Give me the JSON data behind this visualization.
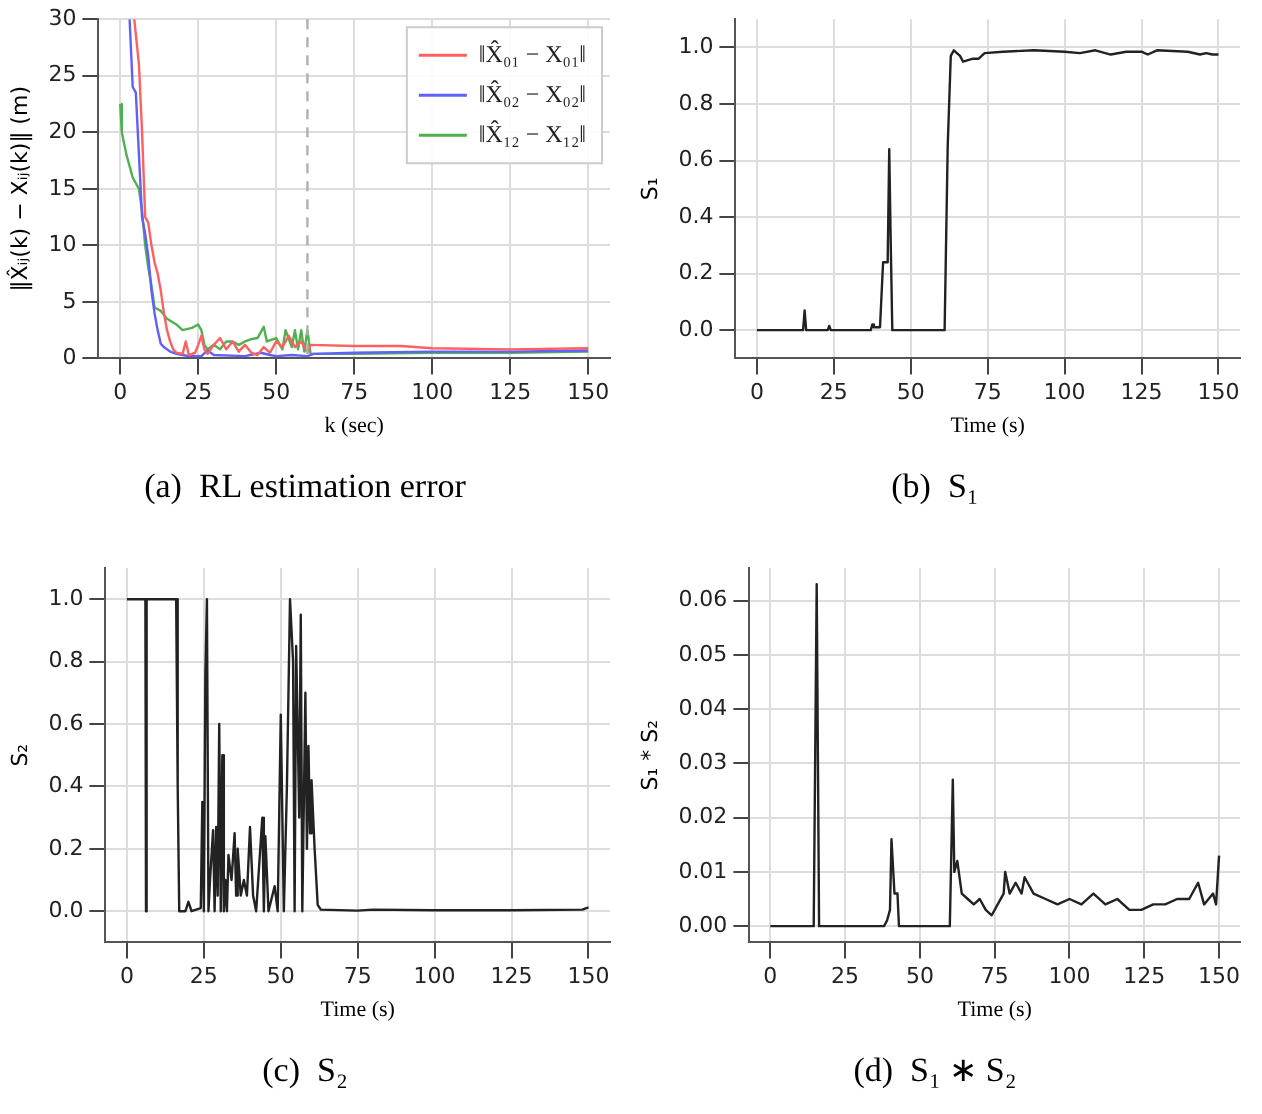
{
  "chart_data": [
    {
      "type": "line",
      "title": "(a)  RL estimation error",
      "xlabel": "k (sec)",
      "ylabel": "‖X̂ᵢⱼ(k) − Xᵢⱼ(k)‖ (m)",
      "xlim": [
        -7,
        157
      ],
      "xticks": [
        0,
        25,
        50,
        75,
        100,
        125,
        150
      ],
      "ylim": [
        0,
        30
      ],
      "yticks": [
        0,
        5,
        10,
        15,
        20,
        25,
        30
      ],
      "grid": true,
      "legend": "top right",
      "ref_lines": [
        {
          "axis": "x",
          "value": 60,
          "color": "#b0b0b0",
          "line_style": "dashed"
        }
      ],
      "series": [
        {
          "name": "‖X̂₀₁ − X₀₁‖",
          "color": "#ff6060",
          "x": [
            4.5,
            6,
            7,
            8,
            9,
            10,
            11,
            12,
            13,
            14,
            15,
            16,
            17,
            18,
            20,
            21,
            22,
            24,
            25,
            26,
            27,
            28,
            30,
            32,
            34,
            36,
            38,
            40,
            42,
            44,
            46,
            48,
            50,
            52,
            54,
            56,
            58,
            60,
            61,
            75,
            90,
            100,
            125,
            150
          ],
          "values": [
            30,
            26,
            20,
            12.5,
            12,
            10,
            8.5,
            7.5,
            6,
            4,
            2.5,
            1.5,
            0.8,
            0.5,
            0.4,
            1.5,
            0.3,
            0.5,
            1.2,
            2,
            0.8,
            0.4,
            1.2,
            1.8,
            0.8,
            1.5,
            0.6,
            1.2,
            0.5,
            0.3,
            1,
            0.5,
            1.5,
            1,
            2,
            1,
            1.5,
            0.5,
            1.2,
            1.1,
            1.1,
            0.9,
            0.8,
            0.9
          ]
        },
        {
          "name": "‖X̂₀₂ − X₀₂‖",
          "color": "#6060ff",
          "x": [
            3,
            4,
            5,
            6,
            7,
            8,
            9,
            10,
            11,
            12,
            13,
            14,
            16,
            18,
            20,
            22,
            26,
            28,
            30,
            40,
            45,
            48,
            50,
            55,
            60,
            62,
            75,
            100,
            125,
            150
          ],
          "values": [
            30,
            24,
            23.5,
            18,
            12.5,
            11,
            9,
            6,
            4,
            2.5,
            1.3,
            1,
            0.6,
            0.4,
            0.3,
            0.2,
            0.2,
            0.7,
            0.3,
            0.2,
            0.5,
            0.3,
            0.2,
            0.3,
            0.2,
            0.4,
            0.5,
            0.6,
            0.6,
            0.7
          ]
        },
        {
          "name": "‖X̂₁₂ − X₁₂‖",
          "color": "#50b050",
          "x": [
            0,
            0.5,
            2,
            4,
            6,
            7,
            8,
            9,
            10,
            11,
            13,
            15,
            18,
            20,
            23,
            25,
            26,
            27,
            28,
            30,
            32,
            34,
            36,
            38,
            40,
            42,
            44,
            46,
            47,
            50,
            52,
            53,
            55,
            56,
            57,
            58,
            59,
            60,
            61,
            75,
            100,
            125,
            150
          ],
          "values": [
            22.5,
            20,
            18,
            16,
            15,
            13,
            10,
            8,
            6.5,
            4.5,
            4.2,
            3.5,
            3,
            2.5,
            2.7,
            3,
            2.5,
            1.2,
            0.8,
            1.2,
            0.8,
            1.5,
            1.5,
            1.2,
            1.5,
            1.7,
            1.8,
            2.8,
            1.5,
            1.8,
            0.8,
            2.5,
            1,
            2.5,
            0.8,
            2.5,
            0.6,
            2.5,
            0.4,
            0.4,
            0.5,
            0.5,
            0.6
          ]
        }
      ]
    },
    {
      "type": "line",
      "title": "(b)  S₁",
      "xlabel": "Time (s)",
      "ylabel": "S₁",
      "xlim": [
        -7,
        157
      ],
      "xticks": [
        0,
        25,
        50,
        75,
        100,
        125,
        150
      ],
      "ylim": [
        -0.1,
        1.1
      ],
      "yticks": [
        {
          "value": 0,
          "label": "0.0"
        },
        {
          "value": 0.2,
          "label": "0.2"
        },
        {
          "value": 0.4,
          "label": "0.4"
        },
        {
          "value": 0.6,
          "label": "0.6"
        },
        {
          "value": 0.8,
          "label": "0.8"
        },
        {
          "value": 1,
          "label": "1.0"
        }
      ],
      "grid": true,
      "series": [
        {
          "color": "#222222",
          "x": [
            0,
            15,
            15.5,
            16,
            23,
            23.5,
            24,
            37,
            37.5,
            38,
            40,
            41,
            42,
            42.5,
            43,
            43.5,
            44,
            61,
            62,
            63,
            64,
            66,
            67,
            70,
            72,
            74,
            80,
            90,
            100,
            105,
            110,
            115,
            120,
            125,
            127,
            130,
            140,
            144,
            146,
            148,
            150
          ],
          "values": [
            0,
            0,
            0.07,
            0,
            0,
            0.015,
            0,
            0,
            0.02,
            0.01,
            0.01,
            0.24,
            0.24,
            0.25,
            0.64,
            0.3,
            0,
            0,
            0.65,
            0.97,
            0.99,
            0.97,
            0.95,
            0.96,
            0.96,
            0.98,
            0.985,
            0.99,
            0.985,
            0.98,
            0.99,
            0.975,
            0.985,
            0.985,
            0.975,
            0.99,
            0.985,
            0.975,
            0.98,
            0.975,
            0.975
          ]
        }
      ]
    },
    {
      "type": "line",
      "title": "(c)  S₂",
      "xlabel": "Time (s)",
      "ylabel": "S₂",
      "xlim": [
        -7,
        157
      ],
      "xticks": [
        0,
        25,
        50,
        75,
        100,
        125,
        150
      ],
      "ylim": [
        -0.1,
        1.1
      ],
      "yticks": [
        {
          "value": 0,
          "label": "0.0"
        },
        {
          "value": 0.2,
          "label": "0.2"
        },
        {
          "value": 0.4,
          "label": "0.4"
        },
        {
          "value": 0.6,
          "label": "0.6"
        },
        {
          "value": 0.8,
          "label": "0.8"
        },
        {
          "value": 1,
          "label": "1.0"
        }
      ],
      "grid": true,
      "series": [
        {
          "color": "#222222",
          "x": [
            0,
            6,
            6.2,
            6.4,
            16,
            16.5,
            17,
            19,
            20,
            21,
            24,
            24.5,
            25,
            25.5,
            26,
            26.5,
            27,
            28,
            28.5,
            29,
            29.5,
            30,
            30.5,
            31,
            31.5,
            32,
            32.5,
            33,
            34,
            35,
            35.5,
            36,
            37,
            38,
            39,
            40,
            41,
            42,
            44,
            44.5,
            45,
            46,
            48,
            49,
            50,
            51,
            52,
            53,
            54,
            54.5,
            55,
            56,
            56.5,
            57,
            58,
            58.5,
            59,
            59.5,
            60,
            61,
            62,
            63,
            75,
            80,
            100,
            125,
            148,
            150
          ],
          "values": [
            1,
            1,
            0,
            1,
            1,
            0.4,
            0,
            0,
            0.03,
            0,
            0.01,
            0.35,
            0,
            0.76,
            1,
            0,
            0.1,
            0.26,
            0,
            0.27,
            0.05,
            0.6,
            0,
            0.5,
            0,
            0.1,
            0,
            0.18,
            0.1,
            0.25,
            0.05,
            0.2,
            0.05,
            0.1,
            0.05,
            0.27,
            0.05,
            0,
            0.3,
            0,
            0.24,
            0,
            0.08,
            0,
            0.63,
            0,
            0.4,
            1,
            0.8,
            0,
            0.85,
            0.3,
            0.95,
            0,
            0.7,
            0.2,
            0.53,
            0.25,
            0.42,
            0.2,
            0.02,
            0.005,
            0.002,
            0.005,
            0.003,
            0.003,
            0.005,
            0.012
          ]
        }
      ]
    },
    {
      "type": "line",
      "title": "(d)  S₁ ∗ S₂",
      "xlabel": "Time (s)",
      "ylabel": "S₁ * S₂",
      "xlim": [
        -7,
        157
      ],
      "xticks": [
        0,
        25,
        50,
        75,
        100,
        125,
        150
      ],
      "ylim": [
        -0.003,
        0.066
      ],
      "yticks": [
        {
          "value": 0,
          "label": "0.00"
        },
        {
          "value": 0.01,
          "label": "0.01"
        },
        {
          "value": 0.02,
          "label": "0.02"
        },
        {
          "value": 0.03,
          "label": "0.03"
        },
        {
          "value": 0.04,
          "label": "0.04"
        },
        {
          "value": 0.05,
          "label": "0.05"
        },
        {
          "value": 0.06,
          "label": "0.06"
        }
      ],
      "grid": true,
      "series": [
        {
          "color": "#222222",
          "x": [
            0,
            14.5,
            15.5,
            16.3,
            25,
            38,
            39,
            40,
            40.5,
            41.5,
            42.5,
            43,
            60,
            61,
            61.5,
            62.5,
            64,
            66,
            68,
            70,
            72,
            74,
            76,
            78,
            78.5,
            80,
            82,
            84,
            85,
            88,
            92,
            96,
            100,
            104,
            108,
            112,
            116,
            120,
            124,
            128,
            132,
            136,
            140,
            143,
            145,
            148,
            149,
            150
          ],
          "values": [
            0,
            0,
            0.063,
            0,
            0,
            0,
            0.001,
            0.003,
            0.016,
            0.006,
            0.006,
            0,
            0,
            0.027,
            0.01,
            0.012,
            0.006,
            0.005,
            0.004,
            0.005,
            0.003,
            0.002,
            0.004,
            0.006,
            0.01,
            0.006,
            0.008,
            0.006,
            0.009,
            0.006,
            0.005,
            0.004,
            0.005,
            0.004,
            0.006,
            0.004,
            0.005,
            0.003,
            0.003,
            0.004,
            0.004,
            0.005,
            0.005,
            0.008,
            0.004,
            0.006,
            0.004,
            0.013
          ]
        }
      ]
    }
  ]
}
